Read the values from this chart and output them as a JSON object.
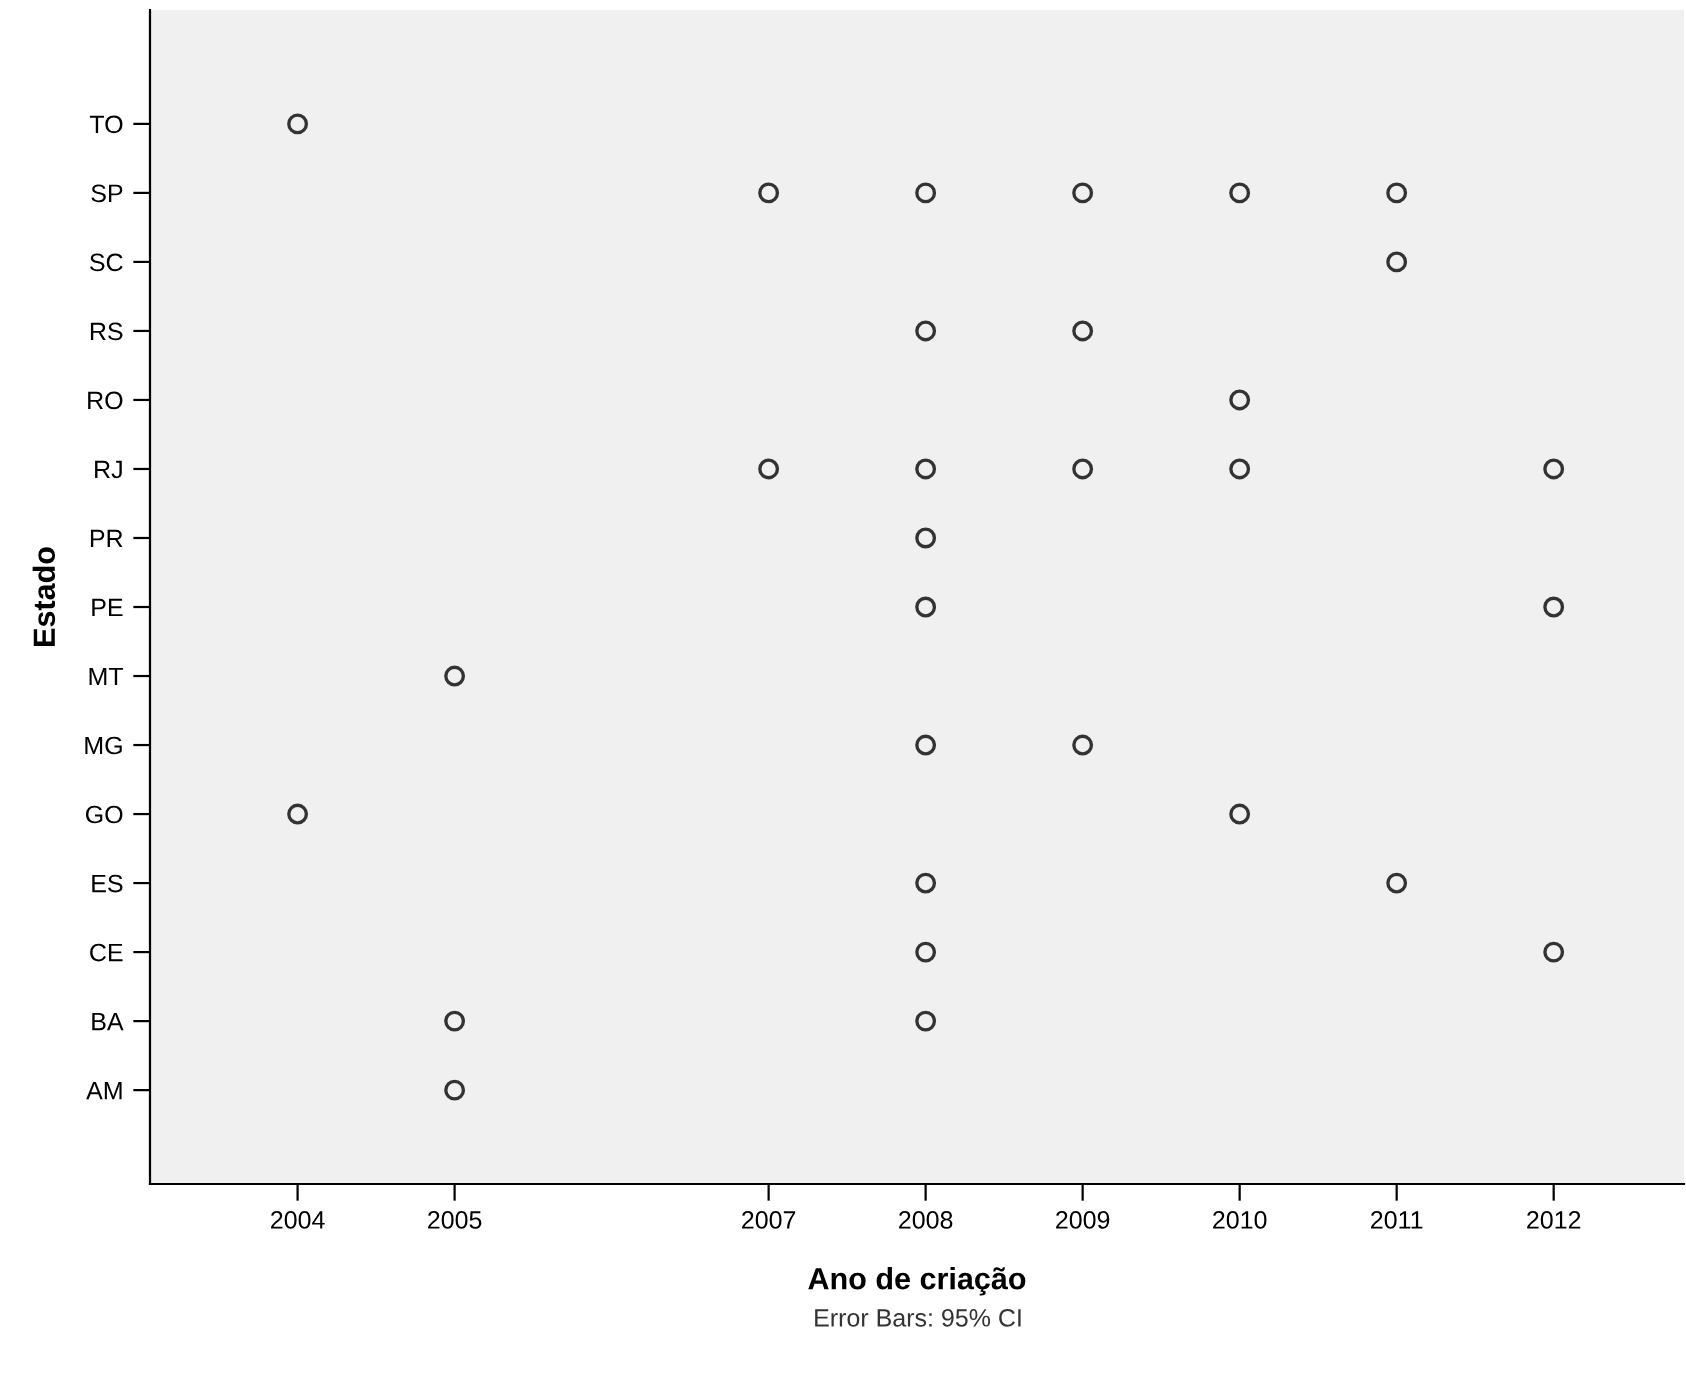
{
  "chart_data": {
    "type": "scatter",
    "orientation": "horizontal",
    "xlabel": "Ano de criação",
    "ylabel": "Estado",
    "categories": [
      "TO",
      "SP",
      "SC",
      "RS",
      "RO",
      "RJ",
      "PR",
      "PE",
      "MT",
      "MG",
      "GO",
      "ES",
      "CE",
      "BA",
      "AM"
    ],
    "xlim": [
      2003.06,
      2012.83
    ],
    "xticks": [
      2004,
      2005,
      2007,
      2008,
      2009,
      2010,
      2011,
      2012
    ],
    "series": [
      {
        "color": "#333333",
        "values": [
          2004,
          2007,
          2011,
          2008,
          2010,
          2007,
          2008,
          2008,
          2005,
          2008,
          2004,
          2008,
          2008,
          2005,
          2005
        ]
      },
      {
        "color": "#333333",
        "values": [
          null,
          2008,
          null,
          2009,
          null,
          2008,
          null,
          2012,
          null,
          2009,
          2010,
          2011,
          2012,
          2008,
          null
        ]
      },
      {
        "color": "#333333",
        "values": [
          null,
          2009,
          null,
          null,
          null,
          2009,
          null,
          null,
          null,
          null,
          null,
          null,
          null,
          null,
          null
        ]
      },
      {
        "color": "#333333",
        "values": [
          null,
          2010,
          null,
          null,
          null,
          2010,
          null,
          null,
          null,
          null,
          null,
          null,
          null,
          null,
          null
        ]
      },
      {
        "color": "#333333",
        "values": [
          null,
          2011,
          null,
          null,
          null,
          2012,
          null,
          null,
          null,
          null,
          null,
          null,
          null,
          null,
          null
        ]
      }
    ],
    "marker": "circle",
    "grid": false,
    "annotations": [
      "Error Bars: 95% CI"
    ]
  }
}
